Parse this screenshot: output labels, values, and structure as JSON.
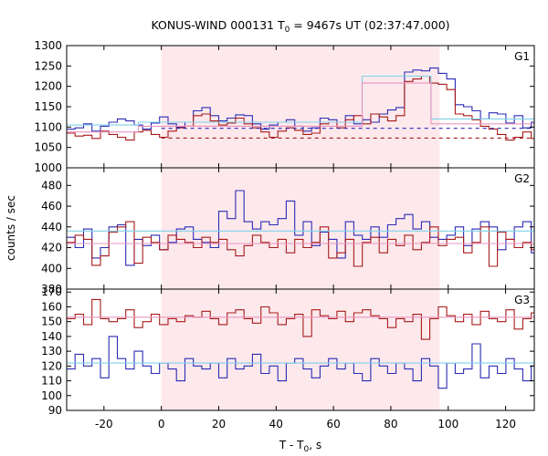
{
  "chart_data": {
    "type": "line",
    "title_main": "KONUS-WIND 000131 T",
    "title_sub": "0",
    "title_rest": " = 9467s UT (02:37:47.000)",
    "xlabel_main": "T - T",
    "xlabel_sub": "0",
    "xlabel_rest": ", s",
    "ylabel": "counts / sec",
    "xlim": [
      -33,
      130
    ],
    "x_ticks": [
      -20,
      0,
      20,
      40,
      60,
      80,
      100,
      120
    ],
    "x_tick_labels": [
      "-20",
      "0",
      "20",
      "40",
      "60",
      "80",
      "100",
      "120"
    ],
    "highlight_interval": [
      0,
      97
    ],
    "colors": {
      "highlight": "#fde9ec",
      "blue": "#2b2bb5",
      "red": "#a81a1a",
      "light_blue": "#7fd0ea",
      "pink": "#e795c0"
    },
    "bin_width": 2.944,
    "panels": [
      {
        "label": "G1",
        "ylim": [
          1000,
          1300
        ],
        "y_ticks": [
          1000,
          1050,
          1100,
          1150,
          1200,
          1250,
          1300
        ],
        "y_tick_labels": [
          "1000",
          "1050",
          "1100",
          "1150",
          "1200",
          "1250",
          "1300"
        ],
        "series": [
          {
            "color": "blue",
            "values": [
              1095,
              1098,
              1108,
              1090,
              1102,
              1112,
              1120,
              1115,
              1105,
              1095,
              1110,
              1125,
              1108,
              1100,
              1112,
              1140,
              1148,
              1128,
              1115,
              1122,
              1130,
              1128,
              1108,
              1095,
              1105,
              1112,
              1118,
              1102,
              1090,
              1098,
              1122,
              1118,
              1112,
              1128,
              1108,
              1118,
              1112,
              1132,
              1142,
              1148,
              1235,
              1240,
              1238,
              1245,
              1232,
              1218,
              1155,
              1150,
              1140,
              1120,
              1135,
              1132,
              1110,
              1128,
              1098,
              1112,
              1142,
              1130,
              1100,
              1125,
              1118,
              1135,
              1108,
              1100,
              1112
            ]
          },
          {
            "color": "red",
            "values": [
              1085,
              1078,
              1080,
              1072,
              1090,
              1082,
              1075,
              1068,
              1088,
              1092,
              1082,
              1075,
              1090,
              1098,
              1102,
              1128,
              1132,
              1115,
              1105,
              1110,
              1122,
              1108,
              1098,
              1088,
              1075,
              1090,
              1098,
              1092,
              1082,
              1085,
              1108,
              1112,
              1098,
              1118,
              1128,
              1108,
              1132,
              1125,
              1115,
              1128,
              1212,
              1218,
              1225,
              1208,
              1205,
              1192,
              1132,
              1128,
              1118,
              1102,
              1095,
              1082,
              1068,
              1075,
              1088,
              1072,
              1102,
              1095,
              1085,
              1078,
              1065,
              1082,
              1098,
              1072,
              1068
            ]
          },
          {
            "color": "light_blue",
            "segments": [
              [
                -33,
                -8,
                1105
              ],
              [
                -8,
                70,
                1112
              ],
              [
                70,
                94,
                1225
              ],
              [
                94,
                130,
                1120
              ]
            ]
          },
          {
            "color": "pink",
            "segments": [
              [
                -33,
                -8,
                1088
              ],
              [
                -8,
                70,
                1102
              ],
              [
                70,
                94,
                1208
              ],
              [
                94,
                130,
                1108
              ]
            ]
          },
          {
            "color": "blue",
            "dashed": true,
            "segments": [
              [
                0,
                130,
                1097
              ]
            ]
          },
          {
            "color": "red",
            "dashed": true,
            "segments": [
              [
                0,
                130,
                1073
              ]
            ]
          }
        ]
      },
      {
        "label": "G2",
        "ylim": [
          380,
          497
        ],
        "y_ticks": [
          380,
          400,
          420,
          440,
          460,
          480
        ],
        "y_tick_labels": [
          "380",
          "400",
          "420",
          "440",
          "460",
          "480"
        ],
        "series": [
          {
            "color": "blue",
            "values": [
              430,
              420,
              438,
              410,
              420,
              440,
              442,
              403,
              428,
              422,
              432,
              418,
              425,
              438,
              440,
              428,
              425,
              420,
              455,
              448,
              475,
              445,
              438,
              445,
              442,
              448,
              465,
              432,
              445,
              422,
              435,
              428,
              410,
              445,
              432,
              428,
              440,
              430,
              442,
              448,
              452,
              438,
              445,
              430,
              428,
              432,
              440,
              422,
              438,
              445,
              440,
              418,
              428,
              440,
              445,
              415,
              432,
              440,
              425,
              438,
              430,
              428,
              445,
              418,
              440
            ]
          },
          {
            "color": "red",
            "values": [
              425,
              432,
              428,
              403,
              412,
              435,
              440,
              445,
              405,
              430,
              425,
              418,
              432,
              428,
              425,
              420,
              430,
              425,
              428,
              418,
              412,
              422,
              432,
              425,
              420,
              428,
              415,
              428,
              420,
              425,
              440,
              410,
              415,
              428,
              402,
              425,
              430,
              415,
              428,
              422,
              432,
              418,
              425,
              440,
              422,
              428,
              430,
              415,
              425,
              440,
              402,
              435,
              428,
              420,
              425,
              418,
              432,
              425,
              405,
              428,
              440,
              425,
              418,
              430,
              402
            ]
          },
          {
            "color": "light_blue",
            "segments": [
              [
                -33,
                130,
                436
              ]
            ]
          },
          {
            "color": "pink",
            "segments": [
              [
                -33,
                130,
                424
              ]
            ]
          }
        ]
      },
      {
        "label": "G3",
        "ylim": [
          90,
          172
        ],
        "y_ticks": [
          90,
          100,
          110,
          120,
          130,
          140,
          150,
          160,
          170
        ],
        "y_tick_labels": [
          "90",
          "100",
          "110",
          "120",
          "130",
          "140",
          "150",
          "160",
          "170"
        ],
        "series": [
          {
            "color": "red",
            "values": [
              152,
              155,
              148,
              165,
              152,
              150,
              152,
              158,
              146,
              150,
              155,
              148,
              152,
              150,
              154,
              153,
              157,
              152,
              148,
              156,
              158,
              152,
              149,
              160,
              156,
              148,
              152,
              155,
              140,
              158,
              154,
              152,
              157,
              150,
              156,
              158,
              154,
              152,
              146,
              152,
              150,
              155,
              138,
              152,
              160,
              154,
              150,
              155,
              148,
              157,
              152,
              150,
              158,
              145,
              152,
              156,
              150,
              157,
              153,
              150,
              162,
              145,
              152,
              155,
              148
            ]
          },
          {
            "color": "blue",
            "values": [
              118,
              128,
              120,
              125,
              112,
              140,
              125,
              118,
              130,
              120,
              115,
              122,
              118,
              110,
              125,
              120,
              118,
              122,
              112,
              125,
              118,
              120,
              128,
              115,
              120,
              110,
              122,
              125,
              118,
              112,
              120,
              125,
              118,
              122,
              115,
              110,
              125,
              120,
              115,
              122,
              118,
              110,
              125,
              120,
              105,
              122,
              115,
              118,
              135,
              112,
              120,
              115,
              125,
              118,
              110,
              120,
              125,
              115,
              118,
              112,
              120,
              122,
              118,
              120,
              122
            ]
          },
          {
            "color": "light_blue",
            "segments": [
              [
                -33,
                130,
                122
              ]
            ]
          },
          {
            "color": "pink",
            "segments": [
              [
                -33,
                130,
                153
              ]
            ]
          }
        ]
      }
    ]
  }
}
